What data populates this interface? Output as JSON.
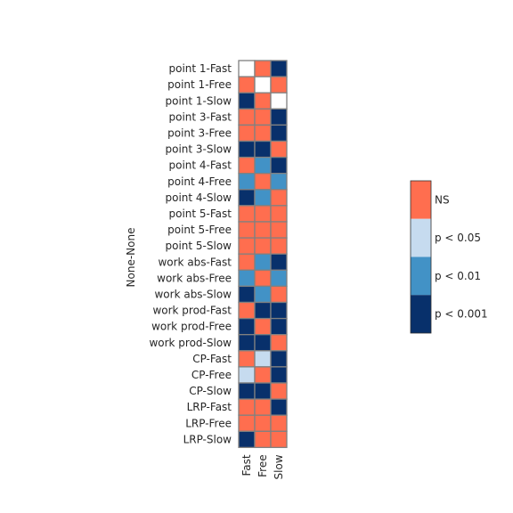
{
  "chart_data": {
    "type": "heatmap",
    "ylabel": "None-None",
    "columns": [
      "Fast",
      "Free",
      "Slow"
    ],
    "rows": [
      "point 1-Fast",
      "point 1-Free",
      "point 1-Slow",
      "point 3-Fast",
      "point 3-Free",
      "point 3-Slow",
      "point 4-Fast",
      "point 4-Free",
      "point 4-Slow",
      "point 5-Fast",
      "point 5-Free",
      "point 5-Slow",
      "work abs-Fast",
      "work abs-Free",
      "work abs-Slow",
      "work prod-Fast",
      "work prod-Free",
      "work prod-Slow",
      "CP-Fast",
      "CP-Free",
      "CP-Slow",
      "LRP-Fast",
      "LRP-Free",
      "LRP-Slow"
    ],
    "values": [
      [
        null,
        "NS",
        "p < 0.001"
      ],
      [
        "NS",
        null,
        "NS"
      ],
      [
        "p < 0.001",
        "NS",
        null
      ],
      [
        "NS",
        "NS",
        "p < 0.001"
      ],
      [
        "NS",
        "NS",
        "p < 0.001"
      ],
      [
        "p < 0.001",
        "p < 0.001",
        "NS"
      ],
      [
        "NS",
        "p < 0.01",
        "p < 0.001"
      ],
      [
        "p < 0.01",
        "NS",
        "p < 0.01"
      ],
      [
        "p < 0.001",
        "p < 0.01",
        "NS"
      ],
      [
        "NS",
        "NS",
        "NS"
      ],
      [
        "NS",
        "NS",
        "NS"
      ],
      [
        "NS",
        "NS",
        "NS"
      ],
      [
        "NS",
        "p < 0.01",
        "p < 0.001"
      ],
      [
        "p < 0.01",
        "NS",
        "p < 0.01"
      ],
      [
        "p < 0.001",
        "p < 0.01",
        "NS"
      ],
      [
        "NS",
        "p < 0.001",
        "p < 0.001"
      ],
      [
        "p < 0.001",
        "NS",
        "p < 0.001"
      ],
      [
        "p < 0.001",
        "p < 0.001",
        "NS"
      ],
      [
        "NS",
        "p < 0.05",
        "p < 0.001"
      ],
      [
        "p < 0.05",
        "NS",
        "p < 0.001"
      ],
      [
        "p < 0.001",
        "p < 0.001",
        "NS"
      ],
      [
        "NS",
        "NS",
        "p < 0.001"
      ],
      [
        "NS",
        "NS",
        "NS"
      ],
      [
        "p < 0.001",
        "NS",
        "NS"
      ]
    ],
    "legend": {
      "placement": "right",
      "levels": [
        {
          "label": "NS",
          "color": "#ff6e4f"
        },
        {
          "label": "p < 0.05",
          "color": "#c6dbef"
        },
        {
          "label": "p < 0.01",
          "color": "#4292c6"
        },
        {
          "label": "p < 0.001",
          "color": "#08306b"
        }
      ]
    },
    "empty_color": "#ffffff",
    "grid_color": "#808080"
  }
}
